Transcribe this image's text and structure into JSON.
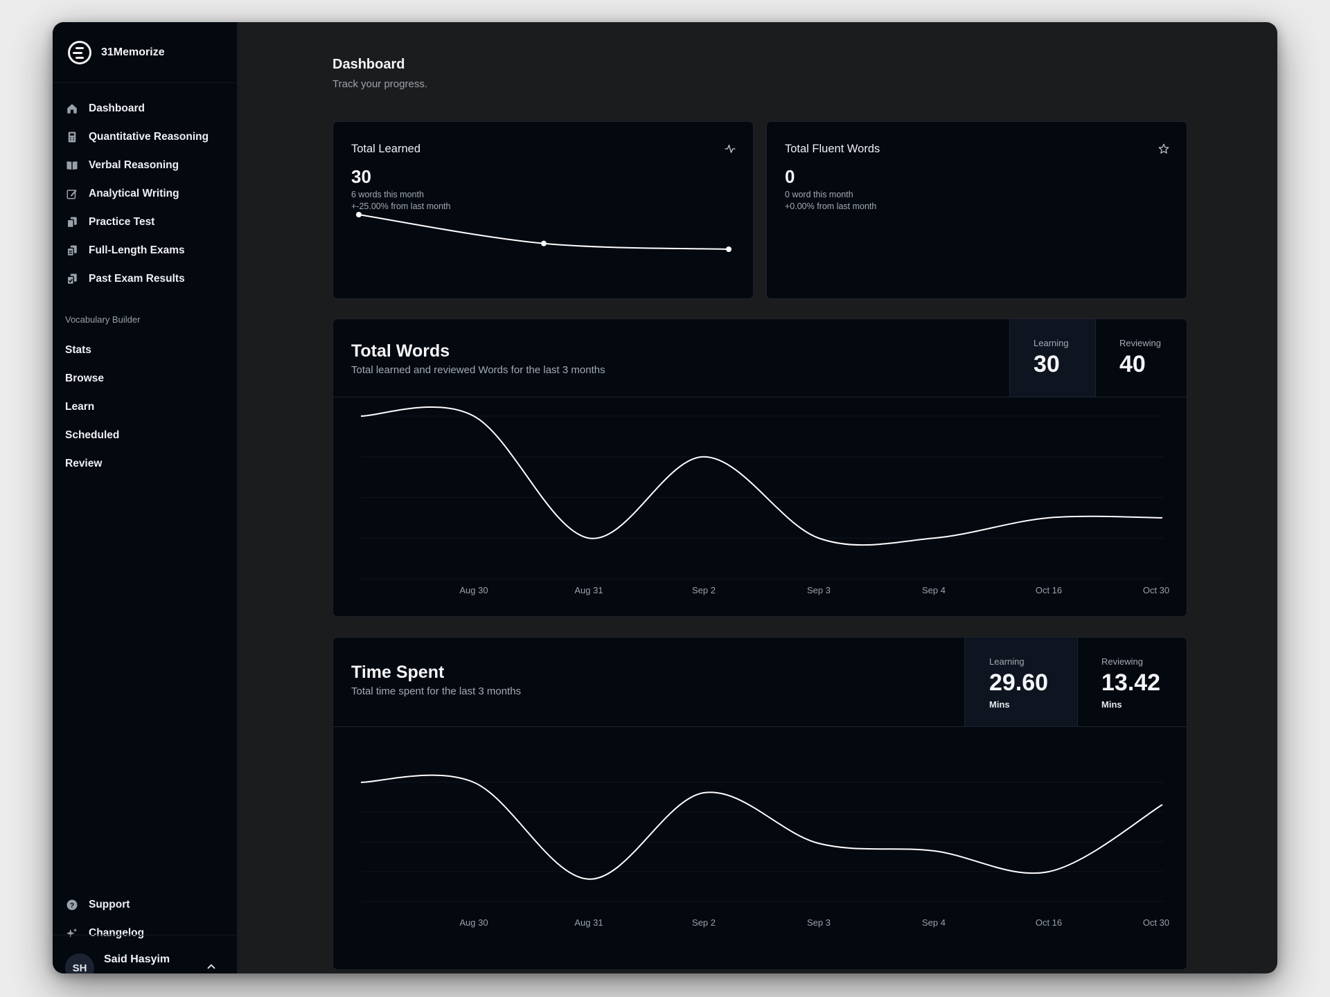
{
  "app": {
    "name": "31Memorize"
  },
  "sidebar": {
    "items": [
      {
        "label": "Dashboard",
        "icon": "home-icon"
      },
      {
        "label": "Quantitative Reasoning",
        "icon": "calculator-icon"
      },
      {
        "label": "Verbal Reasoning",
        "icon": "book-icon"
      },
      {
        "label": "Analytical Writing",
        "icon": "edit-icon"
      },
      {
        "label": "Practice Test",
        "icon": "copy-icon"
      },
      {
        "label": "Full-Length Exams",
        "icon": "copy-icon"
      },
      {
        "label": "Past Exam Results",
        "icon": "copy-check-icon"
      }
    ],
    "vocab_section": "Vocabulary Builder",
    "vocab_items": [
      "Stats",
      "Browse",
      "Learn",
      "Scheduled",
      "Review"
    ],
    "bottom_items": [
      {
        "label": "Support",
        "icon": "help-circle-icon"
      },
      {
        "label": "Changelog",
        "icon": "sparkles-icon"
      }
    ],
    "user": {
      "initials": "SH",
      "name": "Said Hasyim"
    }
  },
  "header": {
    "title": "Dashboard",
    "subtitle": "Track your progress."
  },
  "cards": {
    "total_learned": {
      "title": "Total Learned",
      "value": "30",
      "note1": "6 words this month",
      "note2": "+-25.00% from last month",
      "sparkline": [
        10,
        5.5,
        4.6
      ]
    },
    "total_fluent": {
      "title": "Total Fluent Words",
      "value": "0",
      "note1": "0 word this month",
      "note2": "+0.00% from last month"
    }
  },
  "total_words": {
    "title": "Total Words",
    "subtitle": "Total learned and reviewed Words for the last 3 months",
    "learning_label": "Learning",
    "learning_value": "30",
    "reviewing_label": "Reviewing",
    "reviewing_value": "40"
  },
  "time_spent": {
    "title": "Time Spent",
    "subtitle": "Total time spent for the last 3 months",
    "learning_label": "Learning",
    "learning_value": "29.60",
    "learning_unit": "Mins",
    "reviewing_label": "Reviewing",
    "reviewing_value": "13.42",
    "reviewing_unit": "Mins"
  },
  "chart_data": [
    {
      "type": "line",
      "categories": [
        "Aug 30",
        "Aug 31",
        "Sep 2",
        "Sep 3",
        "Sep 4",
        "Oct 16",
        "Oct 30"
      ],
      "series": [
        {
          "values": [
            8,
            2,
            6,
            2,
            2,
            3,
            3
          ]
        }
      ],
      "start_value": 8,
      "ylim": [
        0,
        8
      ],
      "grid": true,
      "color": "#ffffff"
    },
    {
      "type": "line",
      "categories": [
        "Aug 30",
        "Aug 31",
        "Sep 2",
        "Sep 3",
        "Sep 4",
        "Oct 16",
        "Oct 30"
      ],
      "series": [
        {
          "values": [
            8,
            1.5,
            7.3,
            3.9,
            3.4,
            2.0,
            6.5
          ]
        }
      ],
      "start_value": 8,
      "ylim": [
        0,
        8
      ],
      "grid": true,
      "color": "#ffffff"
    }
  ]
}
